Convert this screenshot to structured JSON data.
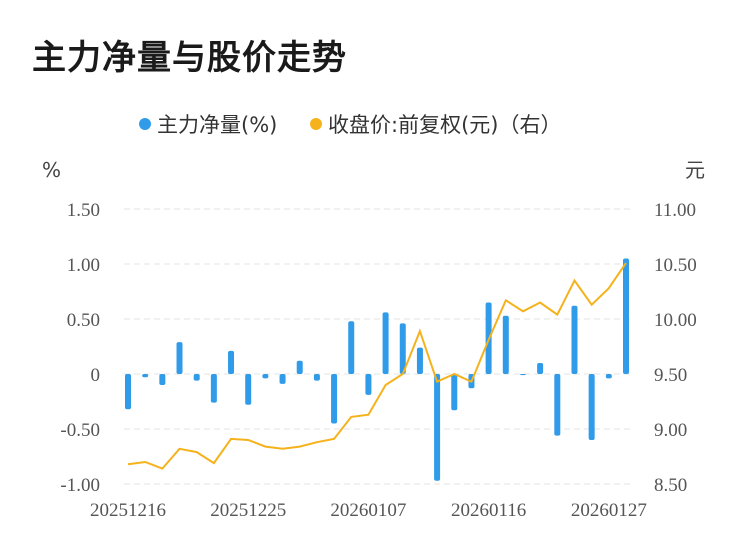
{
  "title": "主力净量与股价走势",
  "colors": {
    "bar": "#2f9be9",
    "line": "#f5b21c",
    "grid": "#e3e3e3",
    "text": "#555555"
  },
  "chart_data": {
    "type": "bar+line",
    "legend": [
      "主力净量(%)",
      "收盘价:前复权(元)（右）"
    ],
    "legend_position": "top-center",
    "y_left_label": "%",
    "y_right_label": "元",
    "y_left_ticks": [
      "1.50",
      "1.00",
      "0.50",
      "0",
      "-0.50",
      "-1.00"
    ],
    "y_right_ticks": [
      "11.00",
      "10.50",
      "10.00",
      "9.50",
      "9.00",
      "8.50"
    ],
    "y_left_range": [
      -1.0,
      1.5
    ],
    "y_right_range": [
      8.5,
      11.0
    ],
    "x_tick_labels": [
      "20251216",
      "20251225",
      "20260107",
      "20260116",
      "20260127"
    ],
    "x_tick_indices": [
      0,
      7,
      14,
      21,
      28
    ],
    "grid": true,
    "series": [
      {
        "name": "主力净量(%)",
        "type": "bar",
        "axis": "left",
        "values": [
          -0.32,
          -0.03,
          -0.1,
          0.29,
          -0.06,
          -0.26,
          0.21,
          -0.28,
          -0.04,
          -0.09,
          0.12,
          -0.06,
          -0.45,
          0.48,
          -0.19,
          0.56,
          0.46,
          0.24,
          -0.97,
          -0.33,
          -0.13,
          0.65,
          0.53,
          -0.01,
          0.1,
          -0.56,
          0.62,
          -0.6,
          -0.04,
          1.05
        ]
      },
      {
        "name": "收盘价:前复权(元)（右）",
        "type": "line",
        "axis": "right",
        "values": [
          8.68,
          8.7,
          8.64,
          8.82,
          8.79,
          8.69,
          8.91,
          8.9,
          8.84,
          8.82,
          8.84,
          8.88,
          8.91,
          9.11,
          9.13,
          9.4,
          9.5,
          9.89,
          9.43,
          9.5,
          9.43,
          9.81,
          10.17,
          10.07,
          10.15,
          10.04,
          10.35,
          10.13,
          10.28,
          10.51
        ]
      }
    ]
  }
}
